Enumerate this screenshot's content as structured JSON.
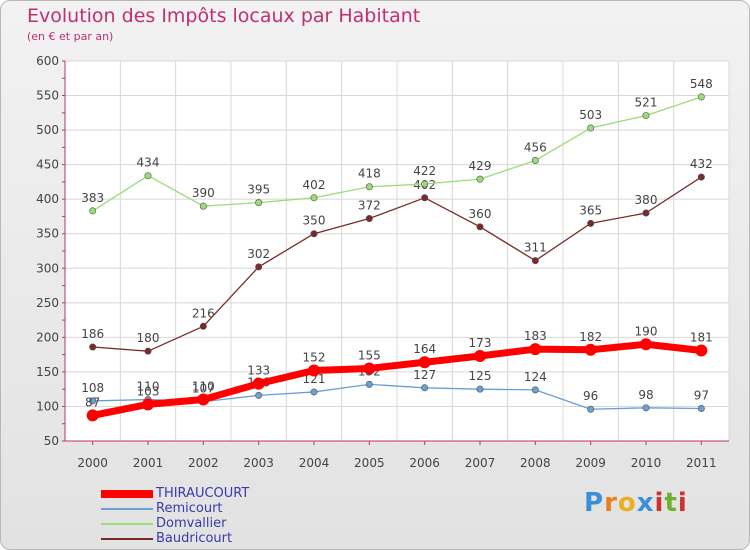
{
  "chart_data": {
    "type": "line",
    "title": "Evolution des Impôts locaux par Habitant",
    "subtitle": "(en € et par an)",
    "x": [
      "2000",
      "2001",
      "2002",
      "2003",
      "2004",
      "2005",
      "2006",
      "2007",
      "2008",
      "2009",
      "2010",
      "2011"
    ],
    "ylim": [
      50,
      600
    ],
    "yticks": [
      "50",
      "100",
      "150",
      "200",
      "250",
      "300",
      "350",
      "400",
      "450",
      "500",
      "550",
      "600"
    ],
    "grid": true,
    "legend_position": "bottom-left",
    "series": [
      {
        "name": "THIRAUCOURT",
        "color": "#ff0000",
        "values": [
          87,
          103,
          110,
          133,
          152,
          155,
          164,
          173,
          183,
          182,
          190,
          181
        ]
      },
      {
        "name": "Remicourt",
        "color": "#6a9fd4",
        "values": [
          108,
          110,
          107,
          116,
          121,
          132,
          127,
          125,
          124,
          96,
          98,
          97
        ]
      },
      {
        "name": "Domvallier",
        "color": "#99dd77",
        "values": [
          383,
          434,
          390,
          395,
          402,
          418,
          422,
          429,
          456,
          503,
          521,
          548
        ]
      },
      {
        "name": "Baudricourt",
        "color": "#7a2a2a",
        "values": [
          186,
          180,
          216,
          302,
          350,
          372,
          402,
          360,
          311,
          365,
          380,
          432
        ]
      }
    ]
  },
  "logo": {
    "letters": [
      "P",
      "r",
      "o",
      "x",
      "i",
      "t",
      "i"
    ],
    "colors": [
      "#3c8ed8",
      "#e88020",
      "#e8b020",
      "#3c8ed8",
      "#d03030",
      "#70b030",
      "#d03030"
    ]
  }
}
